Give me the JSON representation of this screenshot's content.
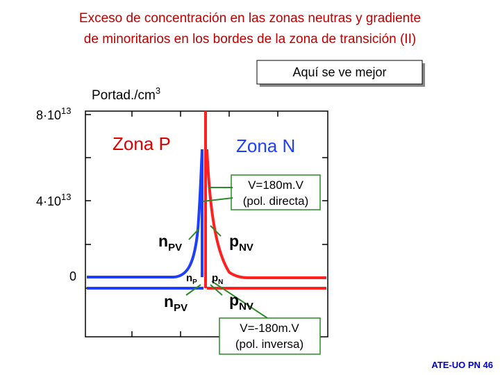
{
  "title": [
    "Exceso de concentración en las zonas neutras y gradiente",
    "de minoritarios en los bordes de la zona de transición (II)"
  ],
  "button": "Aquí se ve mejor",
  "axis": {
    "label": "Portad./cm",
    "label_sup": "3",
    "ticks": [
      {
        "base": "8·10",
        "exp": "13"
      },
      {
        "base": "4·10",
        "exp": "13"
      },
      {
        "base": "0"
      }
    ]
  },
  "zones": {
    "p": "Zona P",
    "n": "Zona N"
  },
  "forward": [
    "V=180m.V",
    "(pol. directa)"
  ],
  "reverse": [
    "V=-180m.V",
    "(pol. inversa)"
  ],
  "labels": {
    "npv_top": {
      "main": "n",
      "sub": "PV"
    },
    "pnv_top": {
      "main": "p",
      "sub": "NV"
    },
    "np": {
      "main": "n",
      "sub": "P"
    },
    "pn": {
      "main": "p",
      "sub": "N"
    },
    "npv_bottom": {
      "main": "n",
      "sub": "PV"
    },
    "pnv_bottom": {
      "main": "p",
      "sub": "NV"
    }
  },
  "footer": "ATE-UO PN 46"
}
